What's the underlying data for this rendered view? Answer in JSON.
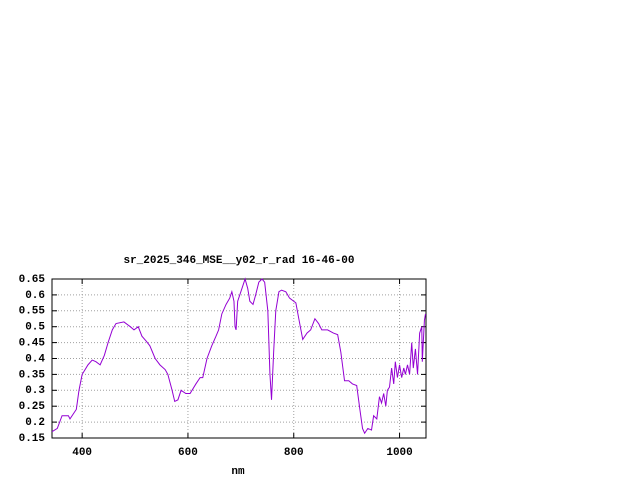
{
  "chart_data": {
    "type": "line",
    "title": "sr_2025_346_MSE__y02_r_rad 16-46-00",
    "x_label": "nm",
    "x": [
      343,
      353,
      362,
      374,
      377,
      389,
      394,
      400,
      411,
      419,
      426,
      434,
      442,
      449,
      457,
      464,
      479,
      491,
      498,
      506,
      513,
      521,
      528,
      538,
      547,
      557,
      562,
      570,
      575,
      581,
      587,
      596,
      604,
      615,
      623,
      628,
      636,
      645,
      653,
      658,
      664,
      672,
      679,
      683,
      687,
      689,
      691,
      694,
      702,
      708,
      713,
      717,
      723,
      728,
      734,
      740,
      745,
      751,
      755,
      758,
      762,
      766,
      772,
      777,
      785,
      792,
      804,
      809,
      817,
      825,
      832,
      840,
      847,
      853,
      864,
      875,
      883,
      889,
      896,
      904,
      911,
      919,
      925,
      930,
      934,
      940,
      947,
      951,
      957,
      962,
      966,
      970,
      974,
      977,
      981,
      985,
      989,
      992,
      996,
      1000,
      1004,
      1008,
      1011,
      1015,
      1019,
      1023,
      1026,
      1030,
      1034,
      1038,
      1042,
      1043,
      1047,
      1049
    ],
    "values": [
      0.17,
      0.18,
      0.22,
      0.22,
      0.21,
      0.24,
      0.3,
      0.35,
      0.38,
      0.395,
      0.39,
      0.38,
      0.41,
      0.45,
      0.49,
      0.51,
      0.515,
      0.5,
      0.49,
      0.5,
      0.47,
      0.455,
      0.44,
      0.4,
      0.38,
      0.365,
      0.35,
      0.3,
      0.265,
      0.27,
      0.3,
      0.29,
      0.29,
      0.32,
      0.34,
      0.34,
      0.4,
      0.44,
      0.47,
      0.49,
      0.54,
      0.57,
      0.59,
      0.61,
      0.58,
      0.5,
      0.49,
      0.58,
      0.62,
      0.65,
      0.62,
      0.58,
      0.57,
      0.6,
      0.64,
      0.65,
      0.64,
      0.55,
      0.35,
      0.27,
      0.42,
      0.55,
      0.61,
      0.615,
      0.61,
      0.59,
      0.575,
      0.53,
      0.46,
      0.48,
      0.49,
      0.525,
      0.51,
      0.49,
      0.49,
      0.48,
      0.475,
      0.42,
      0.33,
      0.33,
      0.32,
      0.315,
      0.24,
      0.18,
      0.165,
      0.18,
      0.175,
      0.22,
      0.21,
      0.28,
      0.26,
      0.29,
      0.25,
      0.3,
      0.31,
      0.37,
      0.32,
      0.39,
      0.34,
      0.38,
      0.34,
      0.37,
      0.35,
      0.38,
      0.35,
      0.45,
      0.37,
      0.43,
      0.35,
      0.48,
      0.5,
      0.39,
      0.52,
      0.54
    ],
    "color": "#9400d3",
    "xlim": [
      343,
      1050
    ],
    "ylim": [
      0.15,
      0.65
    ],
    "xticks": [
      400,
      600,
      800,
      1000
    ],
    "yticks": [
      0.15,
      0.2,
      0.25,
      0.3,
      0.35,
      0.4,
      0.45,
      0.5,
      0.55,
      0.6,
      0.65
    ],
    "grid": true
  }
}
